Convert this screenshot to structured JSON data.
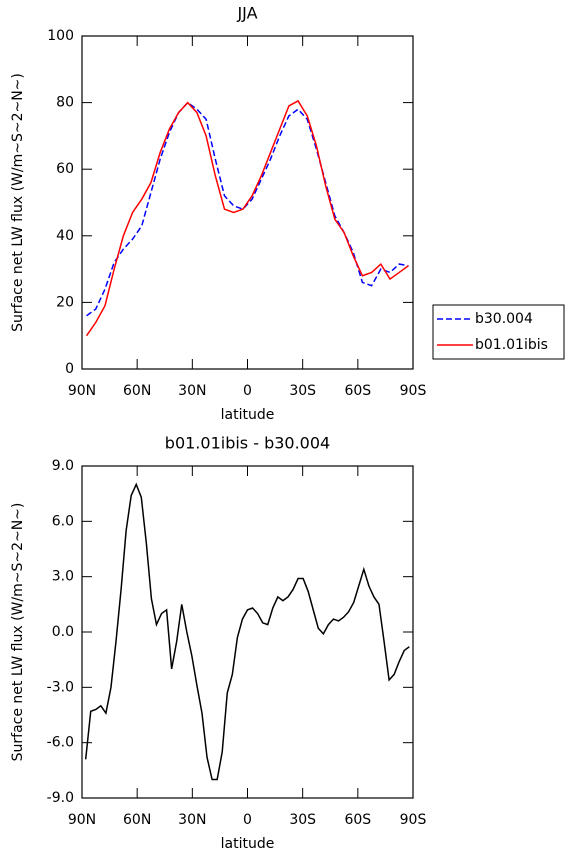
{
  "chart_data": [
    {
      "type": "line",
      "title": "JJA",
      "xlabel": "latitude",
      "ylabel": "Surface net LW flux (W/m~S~2~N~)",
      "x": [
        87.5,
        82.5,
        77.5,
        72.5,
        67.5,
        62.5,
        57.5,
        52.5,
        47.5,
        42.5,
        37.5,
        32.5,
        27.5,
        22.5,
        17.5,
        12.5,
        7.5,
        2.5,
        -2.5,
        -7.5,
        -12.5,
        -17.5,
        -22.5,
        -27.5,
        -32.5,
        -37.5,
        -42.5,
        -47.5,
        -52.5,
        -57.5,
        -62.5,
        -67.5,
        -72.5,
        -77.5,
        -82.5,
        -87.5
      ],
      "series": [
        {
          "name": "b30.004",
          "color": "#0000ff",
          "dashed": true,
          "values": [
            16,
            18,
            24,
            32,
            36,
            39,
            43,
            53,
            63,
            71,
            77,
            80,
            78,
            75,
            63,
            52,
            49,
            48,
            51,
            57,
            63,
            70,
            76,
            78,
            75,
            66,
            56,
            46,
            41,
            35,
            26,
            25,
            30,
            29,
            31.5,
            31
          ]
        },
        {
          "name": "b01.01ibis",
          "color": "#ff0000",
          "dashed": false,
          "values": [
            10,
            14,
            19,
            30,
            40,
            47,
            51,
            56,
            65,
            72,
            77,
            80,
            77,
            70,
            58,
            48,
            47,
            48,
            52,
            58,
            65,
            72,
            79,
            80.5,
            76,
            67,
            55,
            45,
            41,
            34,
            28,
            29,
            31.5,
            27,
            29,
            31
          ]
        }
      ],
      "xlim": [
        90,
        -90
      ],
      "xticks": [
        {
          "value": 90,
          "label": "90N"
        },
        {
          "value": 60,
          "label": "60N"
        },
        {
          "value": 30,
          "label": "30N"
        },
        0,
        {
          "value": -30,
          "label": "30S"
        },
        {
          "value": -60,
          "label": "60S"
        },
        {
          "value": -90,
          "label": "90S"
        }
      ],
      "ylim": [
        0,
        100
      ],
      "yticks": [
        0,
        20,
        40,
        60,
        80,
        100
      ],
      "legend": "outside right"
    },
    {
      "type": "line",
      "title": "b01.01ibis - b30.004",
      "xlabel": "latitude",
      "ylabel": "Surface net LW flux (W/m~S~2~N~)",
      "x": [
        88,
        85.25,
        82.5,
        79.75,
        77,
        74.25,
        71.5,
        68.75,
        66,
        63.25,
        60.5,
        57.75,
        55,
        52.25,
        49.5,
        46.75,
        44,
        41.25,
        38.5,
        35.75,
        33,
        30.25,
        27.5,
        24.75,
        22,
        19.25,
        16.5,
        13.75,
        11,
        8.25,
        5.5,
        2.75,
        0,
        -2.75,
        -5.5,
        -8.25,
        -11,
        -13.75,
        -16.5,
        -19.25,
        -22,
        -24.75,
        -27.5,
        -30.25,
        -33,
        -35.75,
        -38.5,
        -41.25,
        -44,
        -46.75,
        -49.5,
        -52.25,
        -55,
        -57.75,
        -60.5,
        -63.25,
        -66,
        -68.75,
        -71.5,
        -74.25,
        -77,
        -79.75,
        -82.5,
        -85.25,
        -88
      ],
      "series": [
        {
          "color": "#000000",
          "dashed": false,
          "values": [
            -6.9,
            -4.3,
            -4.2,
            -4.0,
            -4.4,
            -3.0,
            -0.5,
            2.3,
            5.5,
            7.4,
            8.0,
            7.3,
            4.8,
            1.8,
            0.4,
            1.0,
            1.2,
            -2.0,
            -0.5,
            1.5,
            0,
            -1.3,
            -2.9,
            -4.4,
            -6.8,
            -8.0,
            -8.0,
            -6.5,
            -3.3,
            -2.3,
            -0.3,
            0.7,
            1.2,
            1.3,
            1.0,
            0.5,
            0.4,
            1.3,
            1.9,
            1.7,
            1.9,
            2.3,
            2.9,
            2.9,
            2.2,
            1.2,
            0.2,
            -0.1,
            0.4,
            0.7,
            0.6,
            0.8,
            1.1,
            1.6,
            2.5,
            3.4,
            2.5,
            1.9,
            1.5,
            -0.5,
            -2.6,
            -2.3,
            -1.6,
            -1.0,
            -0.8
          ]
        }
      ],
      "xlim": [
        90,
        -90
      ],
      "xticks": [
        {
          "value": 90,
          "label": "90N"
        },
        {
          "value": 60,
          "label": "60N"
        },
        {
          "value": 30,
          "label": "30N"
        },
        0,
        {
          "value": -30,
          "label": "30S"
        },
        {
          "value": -60,
          "label": "60S"
        },
        {
          "value": -90,
          "label": "90S"
        }
      ],
      "ylim": [
        -9,
        9
      ],
      "yticks": [
        {
          "value": -9,
          "label": "-9.0"
        },
        {
          "value": -6,
          "label": "-6.0"
        },
        {
          "value": -3,
          "label": "-3.0"
        },
        {
          "value": 0,
          "label": "0.0"
        },
        {
          "value": 3,
          "label": "3.0"
        },
        {
          "value": 6,
          "label": "6.0"
        },
        {
          "value": 9,
          "label": "9.0"
        }
      ]
    }
  ]
}
